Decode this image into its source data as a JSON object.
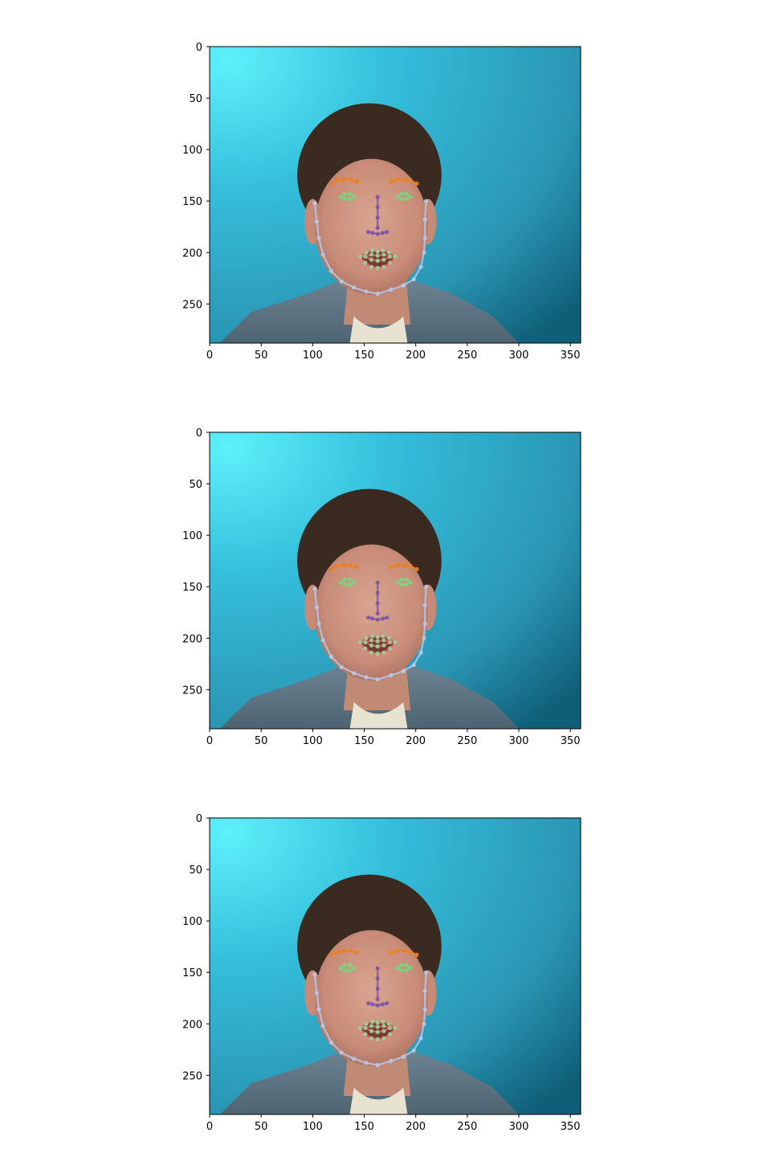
{
  "chart_data": [
    {
      "type": "image",
      "xlim": [
        0,
        360
      ],
      "ylim": [
        288,
        0
      ],
      "xticks": [
        0,
        50,
        100,
        150,
        200,
        250,
        300,
        350
      ],
      "yticks": [
        0,
        50,
        100,
        150,
        200,
        250
      ],
      "landmarks": {
        "jaw": [
          [
            102,
            152
          ],
          [
            104,
            170
          ],
          [
            106,
            186
          ],
          [
            110,
            202
          ],
          [
            118,
            218
          ],
          [
            128,
            228
          ],
          [
            140,
            234
          ],
          [
            152,
            238
          ],
          [
            163,
            240
          ],
          [
            176,
            236
          ],
          [
            188,
            232
          ],
          [
            198,
            226
          ],
          [
            205,
            214
          ],
          [
            208,
            200
          ],
          [
            209,
            186
          ],
          [
            209,
            168
          ],
          [
            210,
            150
          ]
        ],
        "left_brow": [
          [
            118,
            133
          ],
          [
            124,
            130
          ],
          [
            130,
            129
          ],
          [
            137,
            129
          ],
          [
            143,
            131
          ]
        ],
        "right_brow": [
          [
            176,
            131
          ],
          [
            182,
            129
          ],
          [
            189,
            129
          ],
          [
            195,
            130
          ],
          [
            201,
            133
          ]
        ],
        "nose_bridge": [
          [
            163,
            146
          ],
          [
            163,
            156
          ],
          [
            163,
            166
          ],
          [
            163,
            176
          ]
        ],
        "nose_base": [
          [
            154,
            180
          ],
          [
            158,
            181
          ],
          [
            163,
            182
          ],
          [
            168,
            181
          ],
          [
            172,
            180
          ]
        ],
        "left_eye": [
          [
            127,
            146
          ],
          [
            131,
            143
          ],
          [
            136,
            143
          ],
          [
            140,
            146
          ],
          [
            136,
            148
          ],
          [
            131,
            148
          ]
        ],
        "right_eye": [
          [
            182,
            146
          ],
          [
            186,
            143
          ],
          [
            191,
            143
          ],
          [
            195,
            146
          ],
          [
            191,
            148
          ],
          [
            186,
            148
          ]
        ],
        "outer_lip": [
          [
            146,
            204
          ],
          [
            152,
            200
          ],
          [
            158,
            198
          ],
          [
            163,
            199
          ],
          [
            168,
            198
          ],
          [
            174,
            200
          ],
          [
            180,
            204
          ],
          [
            175,
            210
          ],
          [
            169,
            214
          ],
          [
            163,
            215
          ],
          [
            157,
            214
          ],
          [
            151,
            210
          ]
        ],
        "inner_lip": [
          [
            151,
            204
          ],
          [
            157,
            202
          ],
          [
            163,
            203
          ],
          [
            169,
            202
          ],
          [
            175,
            204
          ],
          [
            169,
            207
          ],
          [
            163,
            208
          ],
          [
            157,
            207
          ]
        ]
      },
      "colors": {
        "jaw": "#b8c7e8",
        "brows": "#f07f1a",
        "nose": "#7f55a8",
        "eyes": "#7fd07f",
        "lips": "#e06060",
        "lip_points": "#9ad29a"
      }
    },
    {
      "type": "image",
      "xlim": [
        0,
        360
      ],
      "ylim": [
        288,
        0
      ],
      "xticks": [
        0,
        50,
        100,
        150,
        200,
        250,
        300,
        350
      ],
      "yticks": [
        0,
        50,
        100,
        150,
        200,
        250
      ],
      "landmarks": {
        "jaw": [
          [
            102,
            152
          ],
          [
            104,
            170
          ],
          [
            106,
            186
          ],
          [
            110,
            202
          ],
          [
            118,
            218
          ],
          [
            128,
            228
          ],
          [
            140,
            234
          ],
          [
            152,
            238
          ],
          [
            163,
            240
          ],
          [
            176,
            236
          ],
          [
            188,
            232
          ],
          [
            198,
            226
          ],
          [
            205,
            214
          ],
          [
            208,
            200
          ],
          [
            209,
            186
          ],
          [
            209,
            168
          ],
          [
            210,
            150
          ]
        ],
        "left_brow": [
          [
            118,
            133
          ],
          [
            124,
            130
          ],
          [
            130,
            129
          ],
          [
            137,
            129
          ],
          [
            143,
            131
          ]
        ],
        "right_brow": [
          [
            176,
            131
          ],
          [
            182,
            129
          ],
          [
            189,
            129
          ],
          [
            195,
            130
          ],
          [
            201,
            133
          ]
        ],
        "nose_bridge": [
          [
            163,
            146
          ],
          [
            163,
            156
          ],
          [
            163,
            166
          ],
          [
            163,
            176
          ]
        ],
        "nose_base": [
          [
            154,
            180
          ],
          [
            158,
            181
          ],
          [
            163,
            182
          ],
          [
            168,
            181
          ],
          [
            172,
            180
          ]
        ],
        "left_eye": [
          [
            127,
            146
          ],
          [
            131,
            143
          ],
          [
            136,
            143
          ],
          [
            140,
            146
          ],
          [
            136,
            148
          ],
          [
            131,
            148
          ]
        ],
        "right_eye": [
          [
            182,
            146
          ],
          [
            186,
            143
          ],
          [
            191,
            143
          ],
          [
            195,
            146
          ],
          [
            191,
            148
          ],
          [
            186,
            148
          ]
        ],
        "outer_lip": [
          [
            146,
            204
          ],
          [
            152,
            200
          ],
          [
            158,
            198
          ],
          [
            163,
            199
          ],
          [
            168,
            198
          ],
          [
            174,
            200
          ],
          [
            180,
            204
          ],
          [
            175,
            210
          ],
          [
            169,
            214
          ],
          [
            163,
            215
          ],
          [
            157,
            214
          ],
          [
            151,
            210
          ]
        ],
        "inner_lip": [
          [
            151,
            204
          ],
          [
            157,
            202
          ],
          [
            163,
            203
          ],
          [
            169,
            202
          ],
          [
            175,
            204
          ],
          [
            169,
            207
          ],
          [
            163,
            208
          ],
          [
            157,
            207
          ]
        ]
      },
      "colors": {
        "jaw": "#b8c7e8",
        "brows": "#f07f1a",
        "nose": "#7f55a8",
        "eyes": "#7fd07f",
        "lips": "#e06060",
        "lip_points": "#9ad29a"
      }
    },
    {
      "type": "image",
      "xlim": [
        0,
        360
      ],
      "ylim": [
        288,
        0
      ],
      "xticks": [
        0,
        50,
        100,
        150,
        200,
        250,
        300,
        350
      ],
      "yticks": [
        0,
        50,
        100,
        150,
        200,
        250
      ],
      "landmarks": {
        "jaw": [
          [
            102,
            152
          ],
          [
            104,
            170
          ],
          [
            106,
            186
          ],
          [
            110,
            202
          ],
          [
            118,
            218
          ],
          [
            128,
            228
          ],
          [
            140,
            234
          ],
          [
            152,
            238
          ],
          [
            163,
            240
          ],
          [
            176,
            236
          ],
          [
            188,
            232
          ],
          [
            198,
            226
          ],
          [
            205,
            214
          ],
          [
            208,
            200
          ],
          [
            209,
            186
          ],
          [
            209,
            168
          ],
          [
            210,
            150
          ]
        ],
        "left_brow": [
          [
            118,
            133
          ],
          [
            124,
            130
          ],
          [
            130,
            129
          ],
          [
            137,
            129
          ],
          [
            143,
            131
          ]
        ],
        "right_brow": [
          [
            176,
            131
          ],
          [
            182,
            129
          ],
          [
            189,
            129
          ],
          [
            195,
            130
          ],
          [
            201,
            133
          ]
        ],
        "nose_bridge": [
          [
            163,
            146
          ],
          [
            163,
            156
          ],
          [
            163,
            166
          ],
          [
            163,
            176
          ]
        ],
        "nose_base": [
          [
            154,
            180
          ],
          [
            158,
            181
          ],
          [
            163,
            182
          ],
          [
            168,
            181
          ],
          [
            172,
            180
          ]
        ],
        "left_eye": [
          [
            127,
            146
          ],
          [
            131,
            143
          ],
          [
            136,
            143
          ],
          [
            140,
            146
          ],
          [
            136,
            148
          ],
          [
            131,
            148
          ]
        ],
        "right_eye": [
          [
            182,
            146
          ],
          [
            186,
            143
          ],
          [
            191,
            143
          ],
          [
            195,
            146
          ],
          [
            191,
            148
          ],
          [
            186,
            148
          ]
        ],
        "outer_lip": [
          [
            146,
            204
          ],
          [
            152,
            200
          ],
          [
            158,
            198
          ],
          [
            163,
            199
          ],
          [
            168,
            198
          ],
          [
            174,
            200
          ],
          [
            180,
            204
          ],
          [
            175,
            210
          ],
          [
            169,
            214
          ],
          [
            163,
            215
          ],
          [
            157,
            214
          ],
          [
            151,
            210
          ]
        ],
        "inner_lip": [
          [
            151,
            204
          ],
          [
            157,
            202
          ],
          [
            163,
            203
          ],
          [
            169,
            202
          ],
          [
            175,
            204
          ],
          [
            169,
            207
          ],
          [
            163,
            208
          ],
          [
            157,
            207
          ]
        ]
      },
      "colors": {
        "jaw": "#b8c7e8",
        "brows": "#f07f1a",
        "nose": "#7f55a8",
        "eyes": "#7fd07f",
        "lips": "#e06060",
        "lip_points": "#9ad29a"
      }
    }
  ]
}
